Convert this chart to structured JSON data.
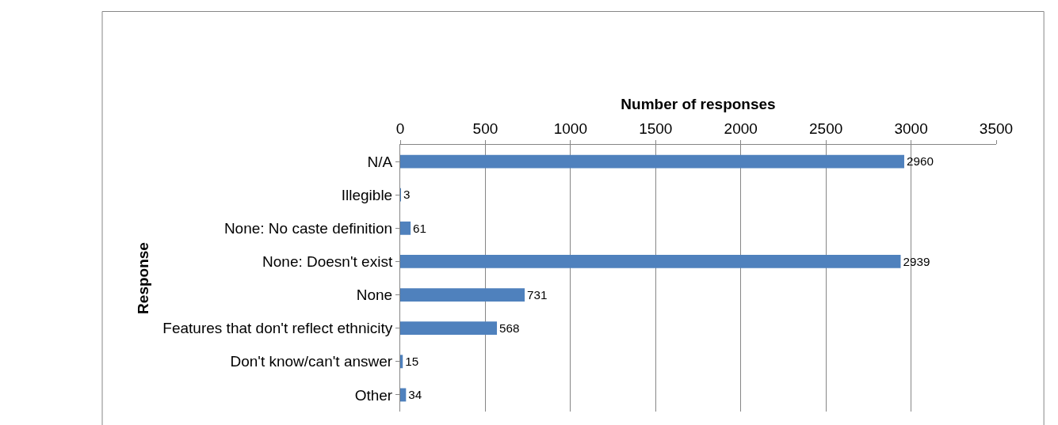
{
  "chart_data": {
    "type": "bar",
    "orientation": "horizontal",
    "xlabel": "Number of responses",
    "ylabel": "Response",
    "categories": [
      "N/A",
      "Illegible",
      "None: No caste definition",
      "None: Doesn't exist",
      "None",
      "Features that don't reflect ethnicity",
      "Don't know/can't answer",
      "Other"
    ],
    "values": [
      2960,
      3,
      61,
      2939,
      731,
      568,
      15,
      34
    ],
    "color": "#4f81bd",
    "xlim": [
      0,
      3500
    ],
    "xticks": [
      0,
      500,
      1000,
      1500,
      2000,
      2500,
      3000,
      3500
    ],
    "grid": "x",
    "data_labels": true,
    "legend": false
  }
}
